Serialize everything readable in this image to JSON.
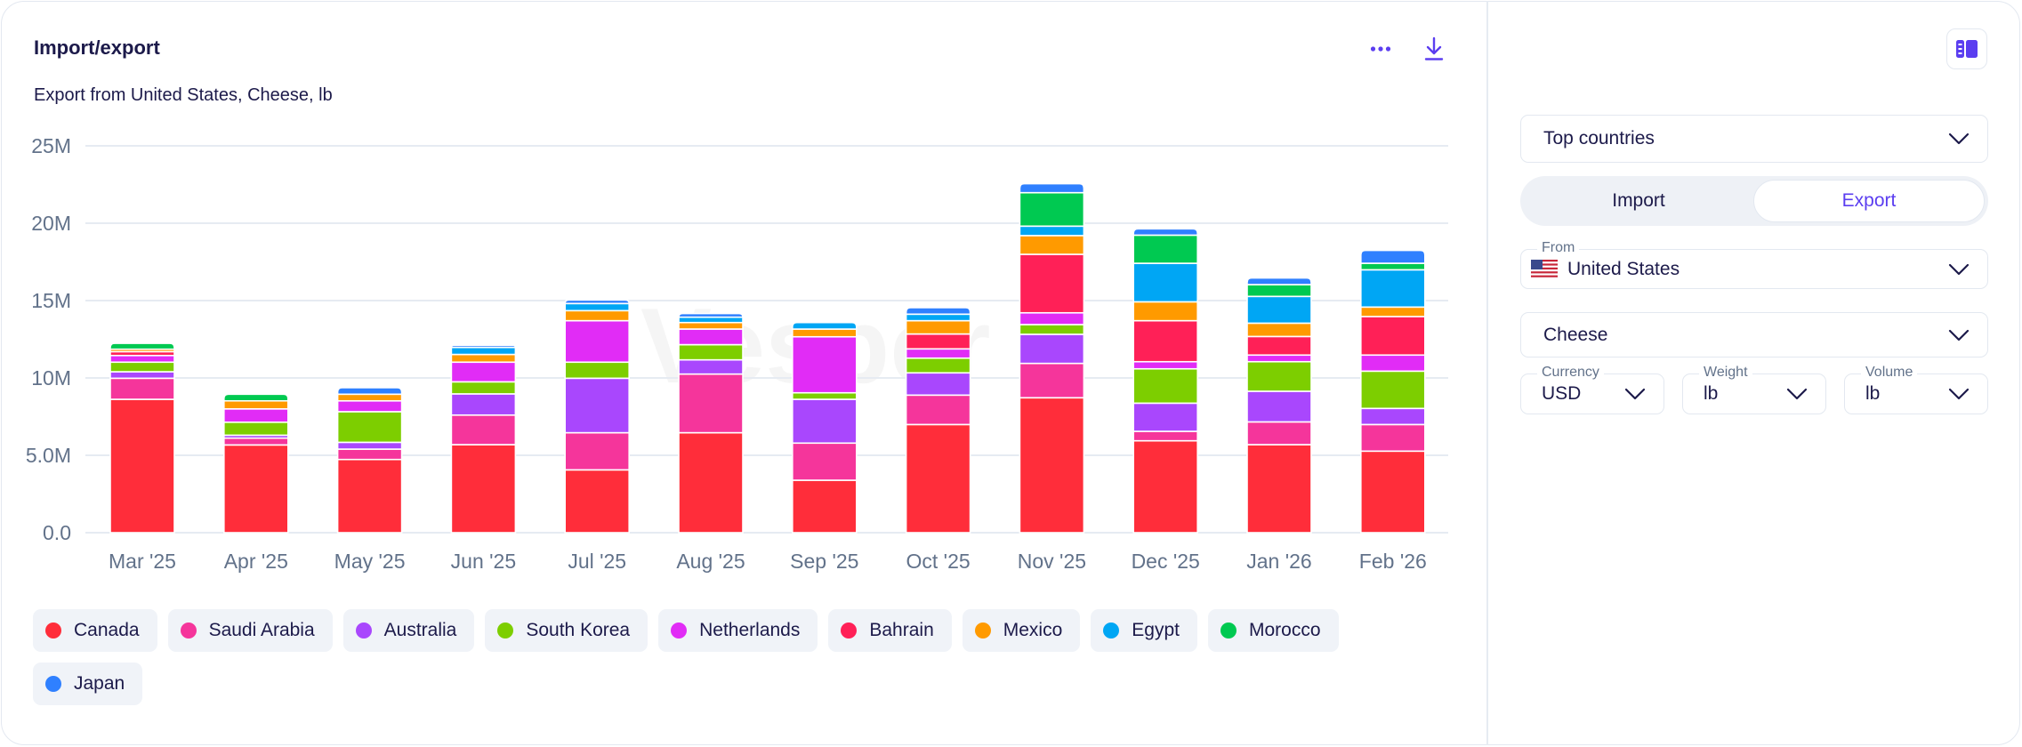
{
  "header": {
    "title": "Import/export",
    "subtitle": "Export from United States, Cheese, lb",
    "more_icon": "ellipsis-icon",
    "download_icon": "download-icon"
  },
  "sidebar": {
    "panel_toggle_icon": "panel-layout-icon",
    "mode_select": {
      "value": "Top countries"
    },
    "flow_toggle": {
      "options": [
        "Import",
        "Export"
      ],
      "selected": "Export"
    },
    "from_select": {
      "label": "From",
      "value": "United States",
      "flag": "us-flag-icon"
    },
    "product_select": {
      "value": "Cheese"
    },
    "currency_select": {
      "label": "Currency",
      "value": "USD"
    },
    "weight_select": {
      "label": "Weight",
      "value": "lb"
    },
    "volume_select": {
      "label": "Volume",
      "value": "lb"
    }
  },
  "watermark": "Vesper",
  "colors": {
    "accent": "#5b3ef0",
    "text": "#1c1a4a",
    "muted": "#62728a"
  },
  "chart_data": {
    "type": "bar",
    "stacked": true,
    "title": "Export from United States, Cheese, lb",
    "xlabel": "",
    "ylabel": "",
    "ylim": [
      0,
      25000000
    ],
    "yticks": [
      0,
      5000000,
      10000000,
      15000000,
      20000000,
      25000000
    ],
    "ytick_labels": [
      "0.0",
      "5.0M",
      "10M",
      "15M",
      "20M",
      "25M"
    ],
    "grid": true,
    "legend_position": "bottom",
    "categories": [
      "Mar '25",
      "Apr '25",
      "May '25",
      "Jun '25",
      "Jul '25",
      "Aug '25",
      "Sep '25",
      "Oct '25",
      "Nov '25",
      "Dec '25",
      "Jan '26",
      "Feb '26"
    ],
    "series": [
      {
        "name": "Canada",
        "color": "#ff2d3a",
        "values": [
          8.62,
          5.67,
          4.73,
          5.69,
          4.06,
          6.46,
          3.39,
          6.99,
          8.72,
          5.94,
          5.69,
          5.27
        ]
      },
      {
        "name": "Saudi Arabia",
        "color": "#f5359b",
        "values": [
          1.36,
          0.44,
          0.67,
          1.91,
          2.4,
          3.79,
          2.4,
          1.9,
          2.22,
          0.61,
          1.47,
          1.72
        ]
      },
      {
        "name": "Australia",
        "color": "#a947fd",
        "values": [
          0.42,
          0.19,
          0.44,
          1.37,
          3.52,
          0.92,
          2.83,
          1.44,
          1.88,
          1.82,
          1.98,
          1.04
        ]
      },
      {
        "name": "South Korea",
        "color": "#7dce00",
        "values": [
          0.62,
          0.84,
          1.98,
          0.78,
          1.04,
          0.98,
          0.42,
          0.95,
          0.63,
          2.22,
          1.91,
          2.41
        ]
      },
      {
        "name": "Netherlands",
        "color": "#e12cf6",
        "values": [
          0.43,
          0.86,
          0.7,
          1.27,
          2.68,
          1.01,
          3.62,
          0.6,
          0.76,
          0.46,
          0.43,
          1.04
        ]
      },
      {
        "name": "Bahrain",
        "color": "#ff2057",
        "values": [
          0.25,
          0.0,
          0.0,
          0.0,
          0.0,
          0.0,
          0.0,
          0.96,
          3.78,
          2.65,
          1.2,
          2.49
        ]
      },
      {
        "name": "Mexico",
        "color": "#ff9a00",
        "values": [
          0.16,
          0.52,
          0.43,
          0.5,
          0.65,
          0.42,
          0.5,
          0.86,
          1.21,
          1.22,
          0.86,
          0.61
        ]
      },
      {
        "name": "Egypt",
        "color": "#00a6f4",
        "values": [
          0.0,
          0.0,
          0.0,
          0.45,
          0.46,
          0.35,
          0.42,
          0.42,
          0.61,
          2.49,
          1.73,
          2.41
        ]
      },
      {
        "name": "Morocco",
        "color": "#00c951",
        "values": [
          0.38,
          0.43,
          0.0,
          0.0,
          0.0,
          0.0,
          0.0,
          0.0,
          2.16,
          1.82,
          0.76,
          0.42
        ]
      },
      {
        "name": "Japan",
        "color": "#2f80ff",
        "values": [
          0.0,
          0.0,
          0.42,
          0.14,
          0.23,
          0.23,
          0.0,
          0.42,
          0.58,
          0.41,
          0.43,
          0.83
        ]
      }
    ],
    "value_unit": "million lb"
  }
}
